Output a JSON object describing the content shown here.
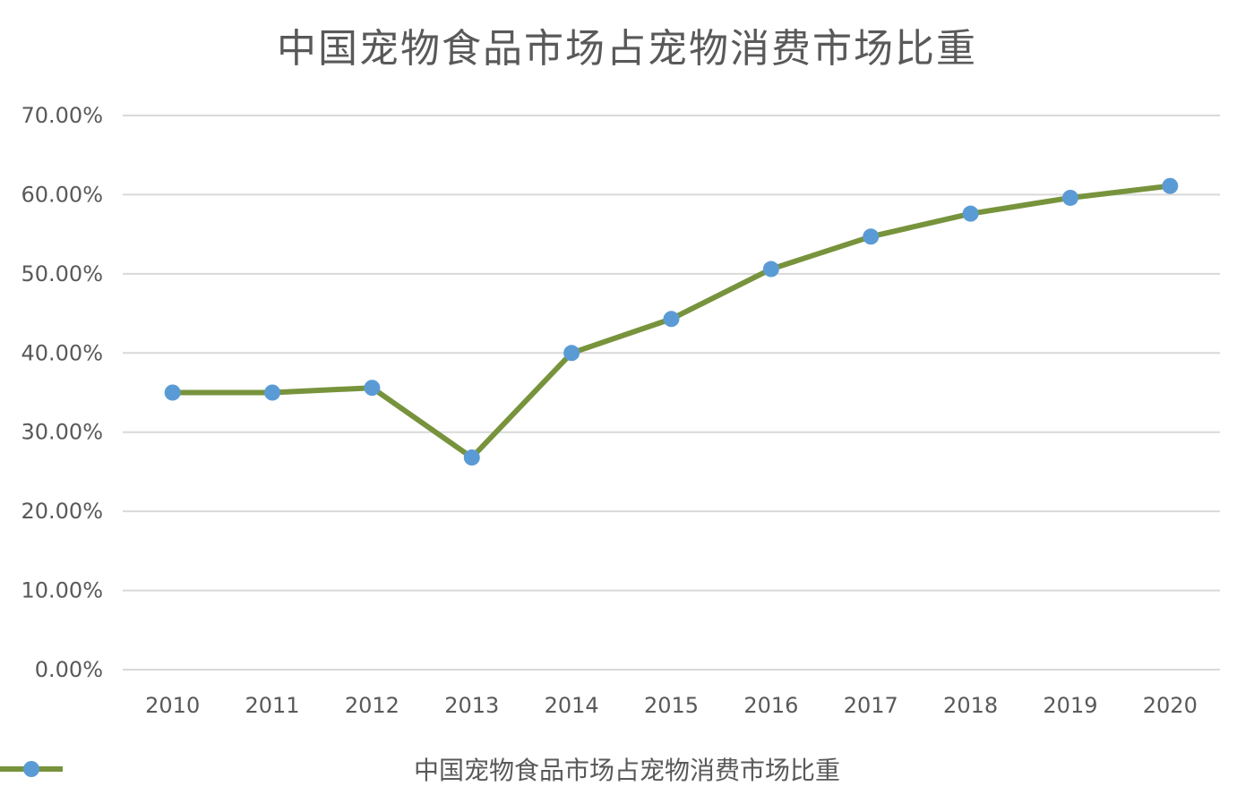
{
  "chart_data": {
    "type": "line",
    "title": "中国宠物食品市场占宠物消费市场比重",
    "categories": [
      "2010",
      "2011",
      "2012",
      "2013",
      "2014",
      "2015",
      "2016",
      "2017",
      "2018",
      "2019",
      "2020"
    ],
    "series": [
      {
        "name": "中国宠物食品市场占宠物消费市场比重",
        "values": [
          0.35,
          0.35,
          0.356,
          0.268,
          0.4,
          0.443,
          0.506,
          0.547,
          0.576,
          0.596,
          0.611
        ]
      }
    ],
    "y_ticks": [
      "0.00%",
      "10.00%",
      "20.00%",
      "30.00%",
      "40.00%",
      "50.00%",
      "60.00%",
      "70.00%"
    ],
    "ylim": [
      0,
      0.7
    ],
    "grid": true,
    "legend_position": "bottom",
    "colors": {
      "line": "#77933C",
      "marker": "#5B9BD5",
      "grid": "#D9D9D9",
      "text": "#595959"
    }
  }
}
